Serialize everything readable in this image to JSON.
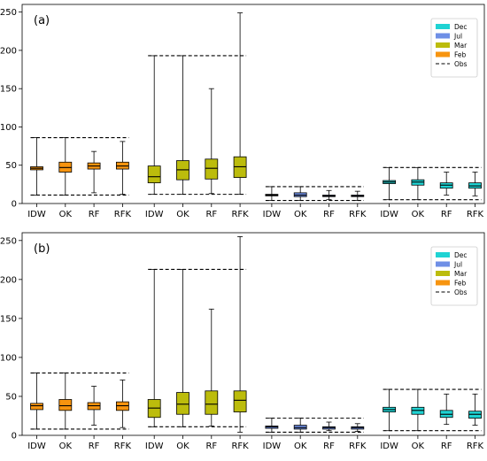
{
  "colors": {
    "Dec": "#1fd3d3",
    "Jul": "#6f8fe6",
    "Mar": "#bcbc0c",
    "Feb": "#f7940f",
    "frame": "#000000",
    "obs": "#000000"
  },
  "chart_data": [
    {
      "type": "boxplot",
      "panel_label": "(a)",
      "ylim": [
        0,
        260
      ],
      "yticks": [
        0,
        50,
        100,
        150,
        200,
        250
      ],
      "categories": [
        "IDW",
        "OK",
        "RF",
        "RFK",
        "IDW",
        "OK",
        "RF",
        "RFK",
        "IDW",
        "OK",
        "RF",
        "RFK",
        "IDW",
        "OK",
        "RF",
        "RFK"
      ],
      "legend": {
        "placement": "top-right",
        "entries": [
          {
            "label": "Dec",
            "kind": "patch",
            "month": "Dec"
          },
          {
            "label": "Jul",
            "kind": "patch",
            "month": "Jul"
          },
          {
            "label": "Mar",
            "kind": "patch",
            "month": "Mar"
          },
          {
            "label": "Feb",
            "kind": "patch",
            "month": "Feb"
          },
          {
            "label": "Obs",
            "kind": "dashed"
          }
        ]
      },
      "groups": [
        {
          "month": "Feb",
          "obs_min": 11,
          "obs_max": 86,
          "boxes": [
            {
              "method": "IDW",
              "min": 11,
              "q1": 44,
              "median": 46,
              "q3": 48,
              "max": 86
            },
            {
              "method": "OK",
              "min": 11,
              "q1": 41,
              "median": 47,
              "q3": 54,
              "max": 86
            },
            {
              "method": "RF",
              "min": 14,
              "q1": 45,
              "median": 49,
              "q3": 53,
              "max": 68
            },
            {
              "method": "RFK",
              "min": 12,
              "q1": 45,
              "median": 49,
              "q3": 54,
              "max": 81
            }
          ]
        },
        {
          "month": "Mar",
          "obs_min": 12,
          "obs_max": 193,
          "boxes": [
            {
              "method": "IDW",
              "min": 12,
              "q1": 27,
              "median": 35,
              "q3": 49,
              "max": 193
            },
            {
              "method": "OK",
              "min": 12,
              "q1": 31,
              "median": 44,
              "q3": 56,
              "max": 193
            },
            {
              "method": "RF",
              "min": 13,
              "q1": 32,
              "median": 46,
              "q3": 58,
              "max": 150
            },
            {
              "method": "RFK",
              "min": 12,
              "q1": 34,
              "median": 48,
              "q3": 61,
              "max": 249
            }
          ]
        },
        {
          "month": "Jul",
          "obs_min": 4,
          "obs_max": 22,
          "boxes": [
            {
              "method": "IDW",
              "min": 4,
              "q1": 10,
              "median": 11,
              "q3": 12,
              "max": 22
            },
            {
              "method": "OK",
              "min": 4,
              "q1": 9,
              "median": 11,
              "q3": 14,
              "max": 22
            },
            {
              "method": "RF",
              "min": 5,
              "q1": 9,
              "median": 10,
              "q3": 11,
              "max": 17
            },
            {
              "method": "RFK",
              "min": 4,
              "q1": 9,
              "median": 10,
              "q3": 11,
              "max": 16
            }
          ]
        },
        {
          "month": "Dec",
          "obs_min": 5,
          "obs_max": 47,
          "boxes": [
            {
              "method": "IDW",
              "min": 5,
              "q1": 26,
              "median": 28,
              "q3": 30,
              "max": 47
            },
            {
              "method": "OK",
              "min": 5,
              "q1": 24,
              "median": 28,
              "q3": 31,
              "max": 47
            },
            {
              "method": "RF",
              "min": 11,
              "q1": 20,
              "median": 24,
              "q3": 27,
              "max": 41
            },
            {
              "method": "RFK",
              "min": 10,
              "q1": 20,
              "median": 23,
              "q3": 27,
              "max": 41
            }
          ]
        }
      ]
    },
    {
      "type": "boxplot",
      "panel_label": "(b)",
      "ylim": [
        0,
        260
      ],
      "yticks": [
        0,
        50,
        100,
        150,
        200,
        250
      ],
      "categories": [
        "IDW",
        "OK",
        "RF",
        "RFK",
        "IDW",
        "OK",
        "RF",
        "RFK",
        "IDW",
        "OK",
        "RF",
        "RFK",
        "IDW",
        "OK",
        "RF",
        "RFK"
      ],
      "legend": {
        "placement": "top-right",
        "entries": [
          {
            "label": "Dec",
            "kind": "patch",
            "month": "Dec"
          },
          {
            "label": "Jul",
            "kind": "patch",
            "month": "Jul"
          },
          {
            "label": "Mar",
            "kind": "patch",
            "month": "Mar"
          },
          {
            "label": "Feb",
            "kind": "patch",
            "month": "Feb"
          },
          {
            "label": "Obs",
            "kind": "dashed"
          }
        ]
      },
      "groups": [
        {
          "month": "Feb",
          "obs_min": 8,
          "obs_max": 80,
          "boxes": [
            {
              "method": "IDW",
              "min": 8,
              "q1": 33,
              "median": 38,
              "q3": 41,
              "max": 80
            },
            {
              "method": "OK",
              "min": 8,
              "q1": 32,
              "median": 38,
              "q3": 46,
              "max": 80
            },
            {
              "method": "RF",
              "min": 13,
              "q1": 33,
              "median": 38,
              "q3": 42,
              "max": 63
            },
            {
              "method": "RFK",
              "min": 10,
              "q1": 32,
              "median": 38,
              "q3": 43,
              "max": 71
            }
          ]
        },
        {
          "month": "Mar",
          "obs_min": 11,
          "obs_max": 213,
          "boxes": [
            {
              "method": "IDW",
              "min": 11,
              "q1": 23,
              "median": 35,
              "q3": 46,
              "max": 213
            },
            {
              "method": "OK",
              "min": 11,
              "q1": 27,
              "median": 40,
              "q3": 55,
              "max": 213
            },
            {
              "method": "RF",
              "min": 12,
              "q1": 27,
              "median": 40,
              "q3": 57,
              "max": 162
            },
            {
              "method": "RFK",
              "min": 4,
              "q1": 30,
              "median": 45,
              "q3": 57,
              "max": 255
            }
          ]
        },
        {
          "month": "Jul",
          "obs_min": 4,
          "obs_max": 22,
          "boxes": [
            {
              "method": "IDW",
              "min": 4,
              "q1": 9,
              "median": 11,
              "q3": 12,
              "max": 22
            },
            {
              "method": "OK",
              "min": 4,
              "q1": 8,
              "median": 10,
              "q3": 13,
              "max": 22
            },
            {
              "method": "RF",
              "min": 6,
              "q1": 8,
              "median": 10,
              "q3": 11,
              "max": 17
            },
            {
              "method": "RFK",
              "min": 5,
              "q1": 8,
              "median": 10,
              "q3": 11,
              "max": 15
            }
          ]
        },
        {
          "month": "Dec",
          "obs_min": 6,
          "obs_max": 59,
          "boxes": [
            {
              "method": "IDW",
              "min": 6,
              "q1": 30,
              "median": 33,
              "q3": 36,
              "max": 59
            },
            {
              "method": "OK",
              "min": 6,
              "q1": 27,
              "median": 32,
              "q3": 36,
              "max": 59
            },
            {
              "method": "RF",
              "min": 14,
              "q1": 23,
              "median": 27,
              "q3": 32,
              "max": 53
            },
            {
              "method": "RFK",
              "min": 13,
              "q1": 22,
              "median": 27,
              "q3": 31,
              "max": 53
            }
          ]
        }
      ]
    }
  ]
}
